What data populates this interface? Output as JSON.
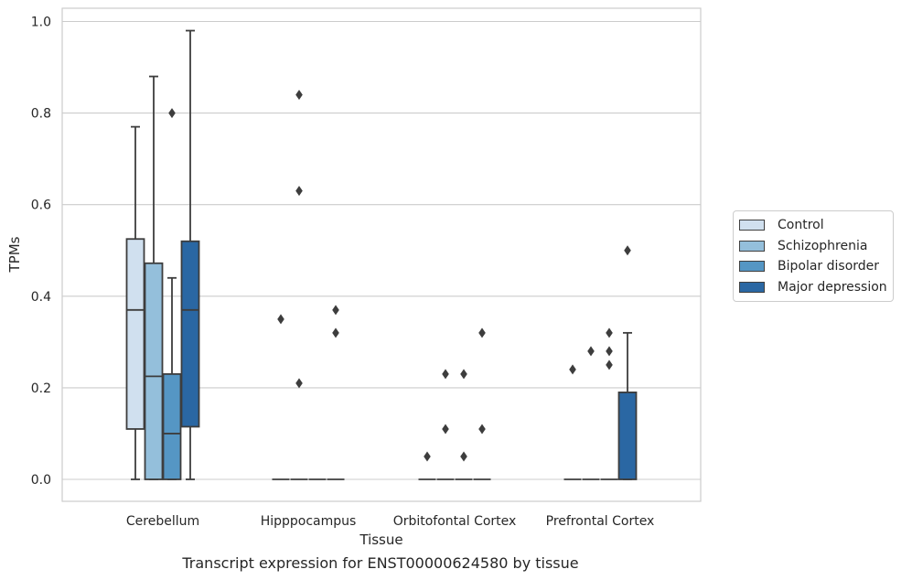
{
  "chart_data": {
    "type": "box",
    "ylabel": "TPMs",
    "xlabel": "Tissue",
    "caption": "Transcript expression for ENST00000624580 by tissue",
    "ylim": [
      -0.045,
      1.03
    ],
    "yticks": [
      0.0,
      0.2,
      0.4,
      0.6,
      0.8,
      1.0
    ],
    "ytick_labels": [
      "0.0",
      "0.2",
      "0.4",
      "0.6",
      "0.8",
      "1.0"
    ],
    "grid": true,
    "legend_position": "right",
    "categories": [
      "Cerebellum",
      "Hipppocampus",
      "Orbitofontal Cortex",
      "Prefrontal Cortex"
    ],
    "series": [
      {
        "name": "Control",
        "color": "#d0e0ef",
        "boxes": [
          {
            "whisker_low": 0.0,
            "q1": 0.11,
            "median": 0.37,
            "q3": 0.525,
            "whisker_high": 0.77,
            "outliers": []
          },
          {
            "whisker_low": 0.0,
            "q1": 0.0,
            "median": 0.0,
            "q3": 0.0,
            "whisker_high": 0.0,
            "outliers": [
              0.35
            ]
          },
          {
            "whisker_low": 0.0,
            "q1": 0.0,
            "median": 0.0,
            "q3": 0.0,
            "whisker_high": 0.0,
            "outliers": [
              0.05
            ]
          },
          {
            "whisker_low": 0.0,
            "q1": 0.0,
            "median": 0.0,
            "q3": 0.0,
            "whisker_high": 0.0,
            "outliers": [
              0.24
            ]
          }
        ]
      },
      {
        "name": "Schizophrenia",
        "color": "#94bfdb",
        "boxes": [
          {
            "whisker_low": 0.0,
            "q1": 0.0,
            "median": 0.225,
            "q3": 0.472,
            "whisker_high": 0.88,
            "outliers": []
          },
          {
            "whisker_low": 0.0,
            "q1": 0.0,
            "median": 0.0,
            "q3": 0.0,
            "whisker_high": 0.0,
            "outliers": [
              0.84,
              0.63,
              0.21
            ]
          },
          {
            "whisker_low": 0.0,
            "q1": 0.0,
            "median": 0.0,
            "q3": 0.0,
            "whisker_high": 0.0,
            "outliers": [
              0.23,
              0.11
            ]
          },
          {
            "whisker_low": 0.0,
            "q1": 0.0,
            "median": 0.0,
            "q3": 0.0,
            "whisker_high": 0.0,
            "outliers": [
              0.28
            ]
          }
        ]
      },
      {
        "name": "Bipolar disorder",
        "color": "#5596c4",
        "boxes": [
          {
            "whisker_low": 0.0,
            "q1": 0.0,
            "median": 0.1,
            "q3": 0.23,
            "whisker_high": 0.44,
            "outliers": [
              0.8
            ]
          },
          {
            "whisker_low": 0.0,
            "q1": 0.0,
            "median": 0.0,
            "q3": 0.0,
            "whisker_high": 0.0,
            "outliers": []
          },
          {
            "whisker_low": 0.0,
            "q1": 0.0,
            "median": 0.0,
            "q3": 0.0,
            "whisker_high": 0.0,
            "outliers": [
              0.23,
              0.05
            ]
          },
          {
            "whisker_low": 0.0,
            "q1": 0.0,
            "median": 0.0,
            "q3": 0.0,
            "whisker_high": 0.0,
            "outliers": [
              0.32,
              0.28,
              0.25
            ]
          }
        ]
      },
      {
        "name": "Major depression",
        "color": "#2a67a3",
        "boxes": [
          {
            "whisker_low": 0.0,
            "q1": 0.115,
            "median": 0.37,
            "q3": 0.52,
            "whisker_high": 0.98,
            "outliers": []
          },
          {
            "whisker_low": 0.0,
            "q1": 0.0,
            "median": 0.0,
            "q3": 0.0,
            "whisker_high": 0.0,
            "outliers": [
              0.37,
              0.32
            ]
          },
          {
            "whisker_low": 0.0,
            "q1": 0.0,
            "median": 0.0,
            "q3": 0.0,
            "whisker_high": 0.0,
            "outliers": [
              0.32,
              0.11
            ]
          },
          {
            "whisker_low": 0.0,
            "q1": 0.0,
            "median": 0.19,
            "q3": 0.19,
            "whisker_high": 0.32,
            "outliers": [
              0.5
            ]
          }
        ]
      }
    ]
  }
}
